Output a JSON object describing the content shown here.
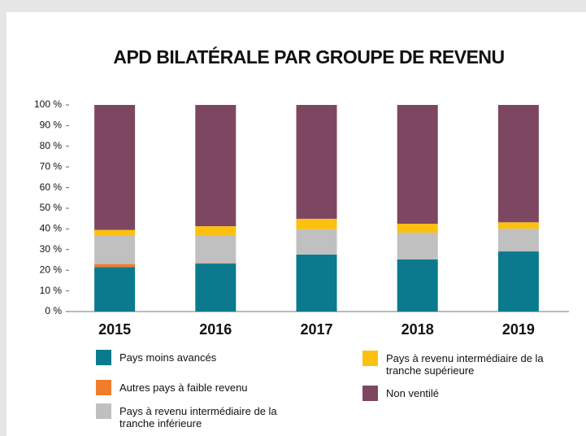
{
  "chart_data": {
    "type": "stacked_bar",
    "title": "APD BILATÉRALE PAR GROUPE DE REVENU",
    "categories": [
      "2015",
      "2016",
      "2017",
      "2018",
      "2019"
    ],
    "series": [
      {
        "name": "Pays moins avancés",
        "color": "#0b7a8e",
        "values": [
          21.5,
          23.2,
          27.6,
          25.2,
          29.1
        ]
      },
      {
        "name": "Autres pays à faible revenu",
        "color": "#ef7d2d",
        "values": [
          1.5,
          0.3,
          0,
          0,
          0
        ]
      },
      {
        "name": "Pays à revenu intermédiaire de la tranche inférieure",
        "color": "#c1c0c0",
        "values": [
          14,
          13.5,
          12.2,
          13,
          11
        ]
      },
      {
        "name": "Pays à revenu intermédiaire de la tranche supérieure",
        "color": "#fcc010",
        "values": [
          2.5,
          4.3,
          5.1,
          4.3,
          3.1
        ]
      },
      {
        "name": "Non ventilé",
        "color": "#7e4761",
        "values": [
          60.5,
          58.7,
          55.1,
          57.5,
          56.8
        ]
      }
    ],
    "ylim": [
      0,
      100
    ],
    "yticks": [
      {
        "value": 0,
        "label": "0 %"
      },
      {
        "value": 10,
        "label": "10 %"
      },
      {
        "value": 20,
        "label": "20 %"
      },
      {
        "value": 30,
        "label": "30 %"
      },
      {
        "value": 40,
        "label": "40 %"
      },
      {
        "value": 50,
        "label": "50 %"
      },
      {
        "value": 60,
        "label": "60 %"
      },
      {
        "value": 70,
        "label": "70 %"
      },
      {
        "value": 80,
        "label": "80 %"
      },
      {
        "value": 90,
        "label": "90 %"
      },
      {
        "value": 100,
        "label": "100 %"
      }
    ],
    "grid": false
  }
}
